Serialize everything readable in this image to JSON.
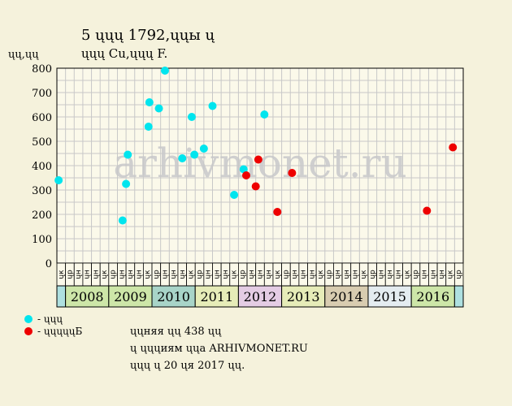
{
  "header": {
    "title_line1": "5 ųųų 1792,ųųы ų",
    "title_line2": "ųųų Cu,ųųų F.",
    "y_axis_label": "ųų,ųų"
  },
  "watermark": "arhivmonet.ru",
  "legend": [
    {
      "label": "- ųųų",
      "color": "#00e5ee"
    },
    {
      "label": "- ųųųųųБ",
      "color": "#ee0000"
    }
  ],
  "notes": [
    "ųųняя ųų 438 ųų",
    "ų ųųųиям ųųa ARHIVMONET.RU",
    "ųųų ų 20 ųя 2017 ųų."
  ],
  "chart_data": {
    "type": "scatter",
    "title": "5 ųųų 1792,ųųы ų",
    "subtitle": "ųųų Cu,ųųų F.",
    "ylabel": "ųų,ųų",
    "ylim": [
      0,
      800
    ],
    "yticks": [
      0,
      100,
      200,
      300,
      400,
      500,
      600,
      700,
      800
    ],
    "grid": true,
    "months": [
      "ųк",
      "ųр",
      "ųн",
      "ųн",
      "ųн",
      "ųк",
      "ųр",
      "ųн",
      "ųн",
      "ųн",
      "ųк",
      "ųр",
      "ųн",
      "ųн",
      "ųн",
      "ųк",
      "ųр",
      "ųн",
      "ųн",
      "ųн",
      "ųк",
      "ųр",
      "ųн",
      "ųн",
      "ųн",
      "ųк",
      "ųр",
      "ųн",
      "ųн",
      "ųн",
      "ųк",
      "ųр",
      "ųн",
      "ųн",
      "ųн",
      "ųк",
      "ųр",
      "ųн",
      "ųн",
      "ųн",
      "ųк",
      "ųр",
      "ųн",
      "ųн",
      "ųн",
      "ųк",
      "ųр"
    ],
    "years": [
      {
        "label": "",
        "span": 1,
        "color": "#aee0e0"
      },
      {
        "label": "2008",
        "span": 5,
        "color": "#cde6a8"
      },
      {
        "label": "2009",
        "span": 5,
        "color": "#cde6a8"
      },
      {
        "label": "2010",
        "span": 5,
        "color": "#a8d4c8"
      },
      {
        "label": "2011",
        "span": 5,
        "color": "#e6ecb8"
      },
      {
        "label": "2012",
        "span": 5,
        "color": "#e4cce4"
      },
      {
        "label": "2013",
        "span": 5,
        "color": "#e6ecb8"
      },
      {
        "label": "2014",
        "span": 5,
        "color": "#d8ccb0"
      },
      {
        "label": "2015",
        "span": 5,
        "color": "#e4ecf0"
      },
      {
        "label": "2016",
        "span": 5,
        "color": "#cde6a8"
      },
      {
        "label": "",
        "span": 1,
        "color": "#aee0e0"
      }
    ],
    "series": [
      {
        "name": "- ųųų",
        "color": "#00e5ee",
        "points": [
          {
            "x": 0.2,
            "y": 340
          },
          {
            "x": 7.6,
            "y": 175
          },
          {
            "x": 8.0,
            "y": 325
          },
          {
            "x": 8.2,
            "y": 445
          },
          {
            "x": 10.6,
            "y": 560
          },
          {
            "x": 10.7,
            "y": 660
          },
          {
            "x": 11.8,
            "y": 635
          },
          {
            "x": 12.5,
            "y": 790
          },
          {
            "x": 14.5,
            "y": 430
          },
          {
            "x": 15.6,
            "y": 600
          },
          {
            "x": 15.9,
            "y": 445
          },
          {
            "x": 17.0,
            "y": 470
          },
          {
            "x": 18.0,
            "y": 645
          },
          {
            "x": 20.5,
            "y": 280
          },
          {
            "x": 21.6,
            "y": 385
          },
          {
            "x": 24.0,
            "y": 610
          }
        ]
      },
      {
        "name": "- ųųųųųБ",
        "color": "#ee0000",
        "points": [
          {
            "x": 21.9,
            "y": 360
          },
          {
            "x": 23.0,
            "y": 315
          },
          {
            "x": 23.3,
            "y": 425
          },
          {
            "x": 25.5,
            "y": 210
          },
          {
            "x": 27.2,
            "y": 370
          },
          {
            "x": 42.8,
            "y": 215
          },
          {
            "x": 45.8,
            "y": 475
          }
        ]
      }
    ]
  }
}
